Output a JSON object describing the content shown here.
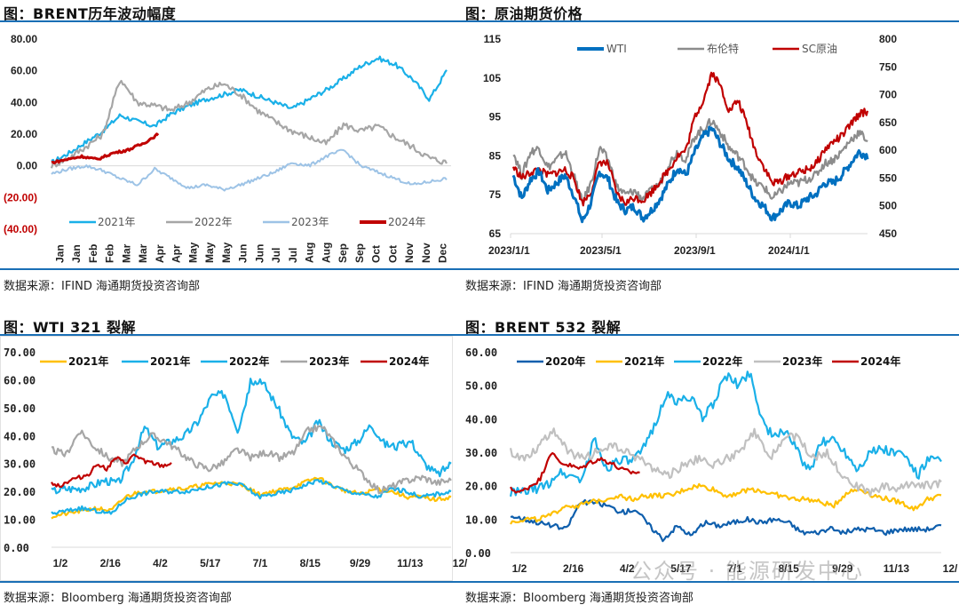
{
  "panels": {
    "brent_vol": {
      "title": "图：BRENT历年波动幅度",
      "source": "数据来源：IFIND   海通期货投资咨询部"
    },
    "crude_prices": {
      "title": "图：原油期货价格",
      "source": "数据来源：IFIND   海通期货投资咨询部"
    },
    "wti_crack": {
      "title": "图：WTI 321 裂解",
      "source": "数据来源：Bloomberg   海通期货投资咨询部"
    },
    "brent_crack": {
      "title": "图：BRENT 532 裂解",
      "source": "数据来源：Bloomberg   海通期货投资咨询部"
    }
  },
  "watermark": "公众号 · 能源研发中心",
  "chart_data": [
    {
      "id": "brent_vol",
      "type": "line",
      "title": "BRENT历年波动幅度",
      "xlabel": "",
      "ylabel": "",
      "ylim": [
        -40,
        80
      ],
      "yticks": [
        "80.00",
        "60.00",
        "40.00",
        "20.00",
        "0.00",
        "(20.00)",
        "(40.00)"
      ],
      "ytick_values": [
        80,
        60,
        40,
        20,
        0,
        -20,
        -40
      ],
      "categories": [
        "Jan",
        "Jan",
        "Feb",
        "Feb",
        "Mar",
        "Mar",
        "Apr",
        "Apr",
        "May",
        "May",
        "May",
        "Jun",
        "Jun",
        "Jul",
        "Jul",
        "Aug",
        "Aug",
        "Sep",
        "Sep",
        "Oct",
        "Oct",
        "Nov",
        "Nov",
        "Dec"
      ],
      "legend_position": "bottom",
      "series": [
        {
          "name": "2021年",
          "color": "#1ab0e8",
          "values": [
            2,
            8,
            15,
            22,
            32,
            28,
            25,
            33,
            38,
            42,
            45,
            48,
            44,
            40,
            36,
            42,
            48,
            55,
            63,
            68,
            64,
            55,
            42,
            60
          ]
        },
        {
          "name": "2022年",
          "color": "#a6a6a6",
          "values": [
            0,
            5,
            12,
            20,
            55,
            40,
            38,
            35,
            40,
            48,
            52,
            45,
            35,
            28,
            22,
            18,
            14,
            26,
            22,
            25,
            18,
            12,
            5,
            2
          ]
        },
        {
          "name": "2023年",
          "color": "#9dc3e6",
          "values": [
            -5,
            -2,
            0,
            -3,
            -8,
            -12,
            -2,
            -8,
            -14,
            -12,
            -15,
            -12,
            -8,
            -4,
            2,
            0,
            6,
            10,
            0,
            -4,
            -8,
            -12,
            -10,
            -8
          ]
        },
        {
          "name": "2024年",
          "color": "#c00000",
          "values": [
            2,
            4,
            6,
            4,
            8,
            10,
            14,
            20
          ]
        }
      ]
    },
    {
      "id": "crude_prices",
      "type": "line",
      "title": "原油期货价格",
      "xlabel": "",
      "ylabel": "",
      "ylim": [
        65,
        115
      ],
      "y2lim": [
        450,
        800
      ],
      "yticks": [
        "115",
        "105",
        "95",
        "85",
        "75",
        "65"
      ],
      "ytick_values": [
        115,
        105,
        95,
        85,
        75,
        65
      ],
      "y2ticks": [
        "800",
        "750",
        "700",
        "650",
        "600",
        "550",
        "500",
        "450"
      ],
      "y2tick_values": [
        800,
        750,
        700,
        650,
        600,
        550,
        500,
        450
      ],
      "x_tick_labels": [
        "2023/1/1",
        "2023/5/1",
        "2023/9/1",
        "2024/1/1"
      ],
      "legend_position": "top",
      "series": [
        {
          "name": "WTI",
          "color": "#0070c0",
          "axis": "left",
          "values": [
            80,
            74,
            79,
            81,
            76,
            78,
            80,
            75,
            68,
            73,
            81,
            79,
            73,
            71,
            72,
            69,
            71,
            74,
            78,
            82,
            80,
            86,
            90,
            92,
            88,
            84,
            82,
            78,
            74,
            72,
            69,
            71,
            73,
            72,
            74,
            75,
            78,
            78,
            80,
            83,
            86,
            85
          ]
        },
        {
          "name": "布伦特",
          "color": "#8c8c8c",
          "axis": "left",
          "values": [
            86,
            80,
            86,
            87,
            82,
            84,
            86,
            80,
            73,
            78,
            87,
            84,
            77,
            75,
            76,
            74,
            76,
            78,
            83,
            86,
            84,
            90,
            92,
            94,
            91,
            87,
            85,
            82,
            78,
            77,
            74,
            76,
            78,
            78,
            79,
            80,
            83,
            84,
            86,
            89,
            91,
            89
          ]
        },
        {
          "name": "SC原油",
          "color": "#c00000",
          "axis": "right",
          "values": [
            570,
            550,
            560,
            565,
            555,
            560,
            565,
            550,
            505,
            525,
            580,
            575,
            520,
            505,
            515,
            510,
            525,
            545,
            565,
            590,
            600,
            660,
            690,
            740,
            715,
            670,
            690,
            650,
            600,
            570,
            540,
            545,
            555,
            560,
            565,
            575,
            600,
            615,
            625,
            645,
            665,
            670
          ]
        }
      ]
    },
    {
      "id": "wti_crack",
      "type": "line",
      "title": "WTI 321 裂解",
      "xlabel": "",
      "ylabel": "",
      "ylim": [
        0,
        70
      ],
      "yticks": [
        "70.00",
        "60.00",
        "50.00",
        "40.00",
        "30.00",
        "20.00",
        "10.00",
        "0.00"
      ],
      "ytick_values": [
        70,
        60,
        50,
        40,
        30,
        20,
        10,
        0
      ],
      "x_tick_labels": [
        "1/2",
        "2/16",
        "4/2",
        "5/17",
        "7/1",
        "8/15",
        "9/29",
        "11/13",
        "12/"
      ],
      "legend_position": "top",
      "series": [
        {
          "name": "2021年",
          "color": "#ffc000",
          "values": [
            11,
            12,
            13,
            14,
            13,
            18,
            20,
            20,
            21,
            21,
            22,
            23,
            23,
            22,
            19,
            20,
            21,
            23,
            25,
            22,
            20,
            19,
            21,
            20,
            18,
            18,
            17,
            18
          ]
        },
        {
          "name": "2021年",
          "color": "#1ab0e8",
          "values": [
            12,
            13,
            14,
            13,
            12,
            17,
            19,
            20,
            20,
            20,
            21,
            22,
            23,
            22,
            18,
            19,
            20,
            22,
            24,
            22,
            20,
            19,
            18,
            21,
            20,
            18,
            19,
            20
          ]
        },
        {
          "name": "2022年",
          "color": "#1ab0e8",
          "values": [
            20,
            21,
            21,
            22,
            24,
            23,
            30,
            43,
            36,
            38,
            40,
            45,
            54,
            55,
            42,
            60,
            58,
            50,
            40,
            37,
            45,
            38,
            35,
            38,
            44,
            37,
            36,
            38,
            30,
            26,
            30
          ]
        },
        {
          "name": "2023年",
          "color": "#a6a6a6",
          "values": [
            35,
            33,
            42,
            36,
            32,
            30,
            36,
            40,
            38,
            34,
            30,
            28,
            30,
            35,
            32,
            34,
            32,
            34,
            42,
            43,
            36,
            30,
            25,
            20,
            22,
            24,
            25,
            23,
            24
          ]
        },
        {
          "name": "2024年",
          "color": "#c00000",
          "values": [
            23,
            22,
            24,
            25,
            26,
            30,
            28,
            32,
            30,
            33,
            31,
            30,
            29,
            30
          ]
        }
      ]
    },
    {
      "id": "brent_crack",
      "type": "line",
      "title": "BRENT 532 裂解",
      "xlabel": "",
      "ylabel": "",
      "ylim": [
        0,
        60
      ],
      "yticks": [
        "60.00",
        "50.00",
        "40.00",
        "30.00",
        "20.00",
        "10.00",
        "0.00"
      ],
      "ytick_values": [
        60,
        50,
        40,
        30,
        20,
        10,
        0
      ],
      "x_tick_labels": [
        "1/2",
        "2/16",
        "4/2",
        "5/17",
        "7/1",
        "8/15",
        "9/29",
        "11/13",
        "12/"
      ],
      "legend_position": "top",
      "series": [
        {
          "name": "2020年",
          "color": "#0f5fad",
          "values": [
            11,
            10,
            9,
            8,
            7,
            15,
            15,
            14,
            12,
            13,
            8,
            4,
            8,
            5,
            9,
            8,
            9,
            10,
            9,
            10,
            9,
            6,
            6,
            7,
            6,
            7,
            7,
            6,
            7,
            7,
            7,
            8
          ]
        },
        {
          "name": "2021年",
          "color": "#ffc000",
          "values": [
            9,
            10,
            10,
            11,
            14,
            14,
            15,
            16,
            17,
            16,
            17,
            17,
            17,
            19,
            20,
            19,
            17,
            18,
            19,
            18,
            17,
            16,
            16,
            15,
            14,
            18,
            19,
            17,
            16,
            15,
            13,
            16,
            17
          ]
        },
        {
          "name": "2022年",
          "color": "#1ab0e8",
          "values": [
            18,
            18,
            19,
            20,
            24,
            23,
            22,
            34,
            25,
            28,
            27,
            30,
            38,
            47,
            45,
            47,
            40,
            45,
            53,
            50,
            54,
            40,
            34,
            37,
            30,
            24,
            33,
            34,
            30,
            25,
            30,
            31,
            30,
            29,
            23,
            28,
            27
          ]
        },
        {
          "name": "2023年",
          "color": "#c0c0c0",
          "values": [
            30,
            28,
            32,
            37,
            30,
            28,
            30,
            32,
            30,
            28,
            25,
            23,
            26,
            28,
            26,
            28,
            30,
            36,
            28,
            34,
            35,
            28,
            30,
            24,
            20,
            18,
            20,
            19,
            21,
            20,
            21
          ]
        },
        {
          "name": "2024年",
          "color": "#c00000",
          "values": [
            19,
            18,
            20,
            22,
            30,
            27,
            26,
            25,
            27,
            28,
            27,
            25,
            24,
            24
          ]
        }
      ]
    }
  ]
}
